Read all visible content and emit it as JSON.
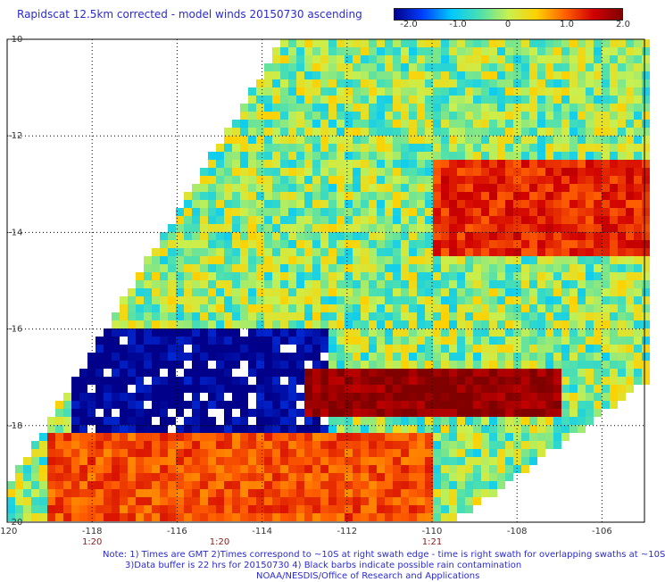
{
  "title": "Rapidscat 12.5km corrected - model winds 20150730 ascending",
  "colorbar": {
    "tick_labels": [
      "-2.0",
      "-1.0",
      "0",
      "1.0",
      "2.0"
    ],
    "colors": [
      "#00008b",
      "#0040ff",
      "#00c8ff",
      "#4ce0b0",
      "#c8f050",
      "#ffd000",
      "#ff6000",
      "#d00000",
      "#800000"
    ]
  },
  "chart_data": {
    "type": "heatmap",
    "title": "Rapidscat 12.5km corrected - model winds 20150730 ascending",
    "xlabel": "",
    "ylabel": "",
    "xlim": [
      -120,
      -105
    ],
    "ylim": [
      -20,
      -10
    ],
    "value_range": [
      -2.0,
      2.0
    ],
    "x_ticks": [
      "-120",
      "-118",
      "-116",
      "-114",
      "-112",
      "-110",
      "-108",
      "-106"
    ],
    "y_ticks": [
      "-10",
      "-12",
      "-14",
      "-16",
      "-18",
      "-20"
    ],
    "time_labels": [
      {
        "x": -118,
        "label": "1:20"
      },
      {
        "x": -115,
        "label": "1:20"
      },
      {
        "x": -110,
        "label": "1:21"
      }
    ],
    "swath_boundary_lon_lat": [
      [
        -113.5,
        -10
      ],
      [
        -104.8,
        -10
      ],
      [
        -104.8,
        -17
      ],
      [
        -109.5,
        -20
      ],
      [
        -120,
        -20
      ],
      [
        -120,
        -19.3
      ]
    ],
    "features": [
      {
        "name": "strong negative difference band",
        "lon": [
          -118.5,
          -112.5
        ],
        "lat": [
          -18.5,
          -16.0
        ],
        "value": -2.0
      },
      {
        "name": "strong positive difference core",
        "lon": [
          -113,
          -107
        ],
        "lat": [
          -17.9,
          -16.9
        ],
        "value": 1.9
      },
      {
        "name": "positive band north",
        "lon": [
          -110,
          -104.8
        ],
        "lat": [
          -14.5,
          -12.5
        ],
        "value": 1.3
      },
      {
        "name": "positive band south",
        "lon": [
          -119,
          -110
        ],
        "lat": [
          -20,
          -18.2
        ],
        "value": 1.1
      }
    ]
  },
  "notes": {
    "line1": "Note: 1) Times are GMT 2)Times correspond to ~10S at right swath edge - time is right swath for overlapping swaths at ~10S",
    "line2": "3)Data buffer is 22 hrs for 20150730 4) Black barbs indicate possible rain contamination",
    "line3": "NOAA/NESDIS/Office of Research and Applications"
  }
}
